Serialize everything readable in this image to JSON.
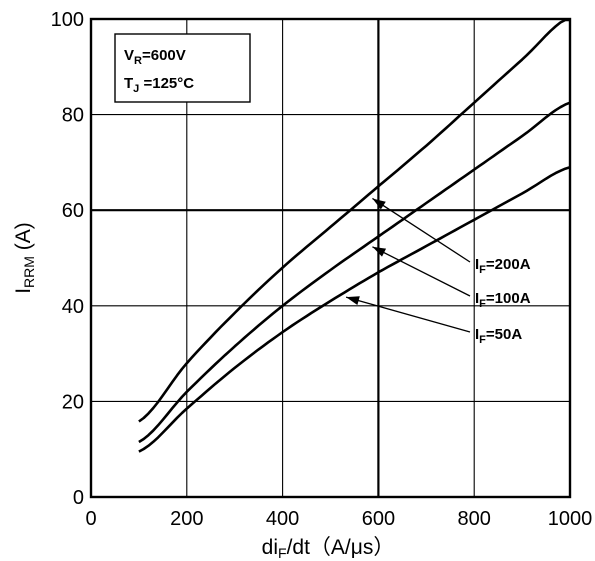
{
  "chart_data": {
    "type": "line",
    "xlabel": {
      "main": "di",
      "sub": "F",
      "rest": "/dt（A/μs）"
    },
    "ylabel": {
      "main": "I",
      "sub": "RRM",
      "rest": " (A)"
    },
    "xlim": [
      0,
      1000
    ],
    "ylim": [
      0,
      100
    ],
    "xticks": [
      "0",
      "200",
      "400",
      "600",
      "800",
      "1000"
    ],
    "yticks": [
      "0",
      "20",
      "40",
      "60",
      "80",
      "100"
    ],
    "grid": true,
    "conditions": [
      {
        "main": "V",
        "sub": "R",
        "rest": "=600V"
      },
      {
        "main": "T",
        "sub": "J",
        "rest": " =125°C"
      }
    ],
    "series": [
      {
        "name": {
          "main": "I",
          "sub": "F",
          "rest": "=200A"
        },
        "x": [
          100,
          200,
          300,
          400,
          500,
          600,
          700,
          800,
          900,
          1000
        ],
        "y": [
          15.8,
          28,
          38.5,
          48,
          56.5,
          65,
          73.5,
          82.5,
          91.5,
          100.5
        ]
      },
      {
        "name": {
          "main": "I",
          "sub": "F",
          "rest": "=100A"
        },
        "x": [
          100,
          200,
          300,
          400,
          500,
          600,
          700,
          800,
          900,
          1000
        ],
        "y": [
          11.5,
          22,
          31.5,
          40,
          47.5,
          54.5,
          61.5,
          68.5,
          75.5,
          82.5
        ]
      },
      {
        "name": {
          "main": "I",
          "sub": "F",
          "rest": "=50A"
        },
        "x": [
          100,
          200,
          300,
          400,
          500,
          600,
          700,
          800,
          900,
          1000
        ],
        "y": [
          9.5,
          18.5,
          27,
          34.5,
          41,
          47,
          52.5,
          58,
          63.5,
          69
        ]
      }
    ],
    "pointers": [
      {
        "series": 0,
        "x": 575
      },
      {
        "series": 1,
        "x": 575
      },
      {
        "series": 2,
        "x": 520
      }
    ]
  }
}
